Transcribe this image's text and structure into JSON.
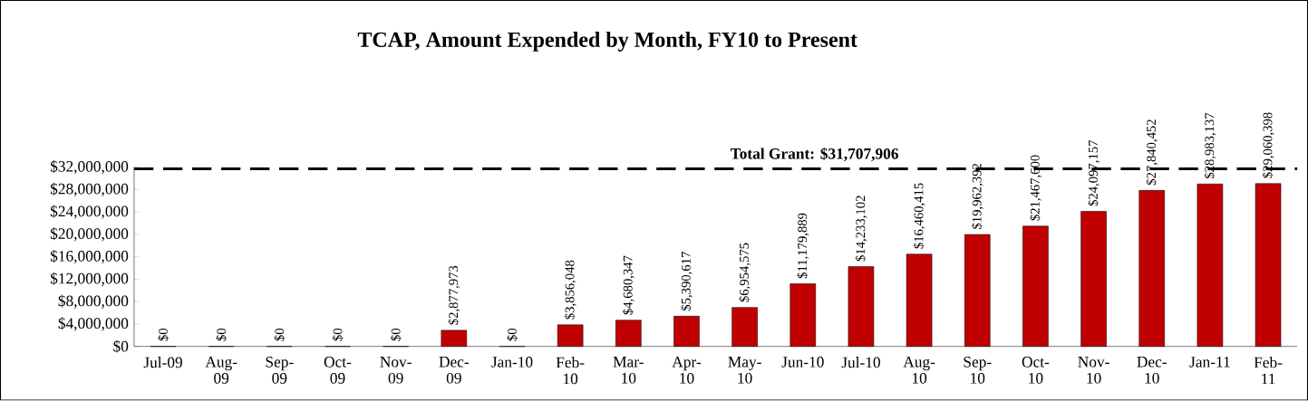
{
  "chart_data": {
    "type": "bar",
    "title": "TCAP, Amount Expended by Month, FY10 to Present",
    "categories": [
      "Jul-09",
      "Aug-09",
      "Sep-09",
      "Oct-09",
      "Nov-09",
      "Dec-09",
      "Jan-10",
      "Feb-10",
      "Mar-10",
      "Apr-10",
      "May-10",
      "Jun-10",
      "Jul-10",
      "Aug-10",
      "Sep-10",
      "Oct-10",
      "Nov-10",
      "Dec-10",
      "Jan-11",
      "Feb-11"
    ],
    "values": [
      0,
      0,
      0,
      0,
      0,
      2877973,
      0,
      3856048,
      4680347,
      5390617,
      6954575,
      11179889,
      14233102,
      16460415,
      19962392,
      21467600,
      24097157,
      27840452,
      28983137,
      29060398
    ],
    "value_labels": [
      "$0",
      "$0",
      "$0",
      "$0",
      "$0",
      "$2,877,973",
      "$0",
      "$3,856,048",
      "$4,680,347",
      "$5,390,617",
      "$6,954,575",
      "$11,179,889",
      "$14,233,102",
      "$16,460,415",
      "$19,962,392",
      "$21,467,600",
      "$24,097,157",
      "$27,840,452",
      "$28,983,137",
      "$29,060,398"
    ],
    "color": "#c00000",
    "ylim": [
      0,
      32000000
    ],
    "yticks": [
      {
        "value": 0,
        "label": "$0"
      },
      {
        "value": 4000000,
        "label": "$4,000,000"
      },
      {
        "value": 8000000,
        "label": "$8,000,000"
      },
      {
        "value": 12000000,
        "label": "$12,000,000"
      },
      {
        "value": 16000000,
        "label": "$16,000,000"
      },
      {
        "value": 20000000,
        "label": "$20,000,000"
      },
      {
        "value": 24000000,
        "label": "$24,000,000"
      },
      {
        "value": 28000000,
        "label": "$28,000,000"
      },
      {
        "value": 32000000,
        "label": "$32,000,000"
      }
    ],
    "ref_lines": [
      {
        "axis": "y",
        "value": 31707906,
        "label": "Total Grant: $31,707,906",
        "color": "#000000",
        "line_style": "dashed"
      }
    ],
    "grid": false
  }
}
